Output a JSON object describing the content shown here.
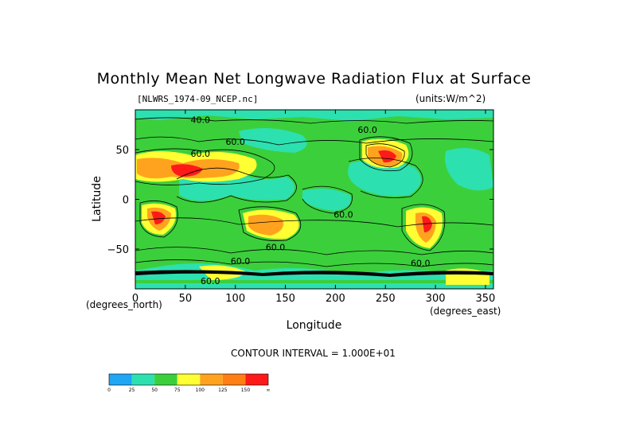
{
  "chart_data": {
    "type": "heatmap",
    "title": "Monthly Mean Net Longwave Radiation Flux at Surface",
    "file_label": "[NLWRS_1974-09_NCEP.nc]",
    "units_label": "(units:W/m^2)",
    "xlabel": "Longitude",
    "ylabel": "Latitude",
    "x_unit_label": "(degrees_east)",
    "y_unit_label": "(degrees_north)",
    "xlim": [
      0,
      358
    ],
    "ylim": [
      -90,
      90
    ],
    "xticks": [
      0,
      50,
      100,
      150,
      200,
      250,
      300,
      350
    ],
    "xtick_labels": [
      "0",
      "50",
      "100",
      "150",
      "200",
      "250",
      "300",
      "350"
    ],
    "yticks": [
      50,
      0,
      -50
    ],
    "ytick_labels": [
      "50",
      "0",
      "−50"
    ],
    "contour_interval_text": "CONTOUR INTERVAL = 1.000E+01",
    "contour_labels": [
      {
        "text": "40.0",
        "lon": 65,
        "lat": 80
      },
      {
        "text": "60.0",
        "lon": 232,
        "lat": 70
      },
      {
        "text": "60.0",
        "lon": 100,
        "lat": 58
      },
      {
        "text": "60.0",
        "lon": 65,
        "lat": 46
      },
      {
        "text": "60.0",
        "lon": 208,
        "lat": -15
      },
      {
        "text": "60.0",
        "lon": 140,
        "lat": -48
      },
      {
        "text": "60.0",
        "lon": 105,
        "lat": -62
      },
      {
        "text": "60.0",
        "lon": 285,
        "lat": -64
      },
      {
        "text": "60.0",
        "lon": 75,
        "lat": -82
      }
    ],
    "colorbar": {
      "colors": [
        "#1fa6f5",
        "#2de0b0",
        "#3ccf3c",
        "#ffff33",
        "#ffa31f",
        "#ff7f14",
        "#ff1a1a"
      ],
      "tick_labels": [
        "0",
        "25",
        "50",
        "75",
        "100",
        "125",
        "150",
        "∞"
      ]
    }
  }
}
